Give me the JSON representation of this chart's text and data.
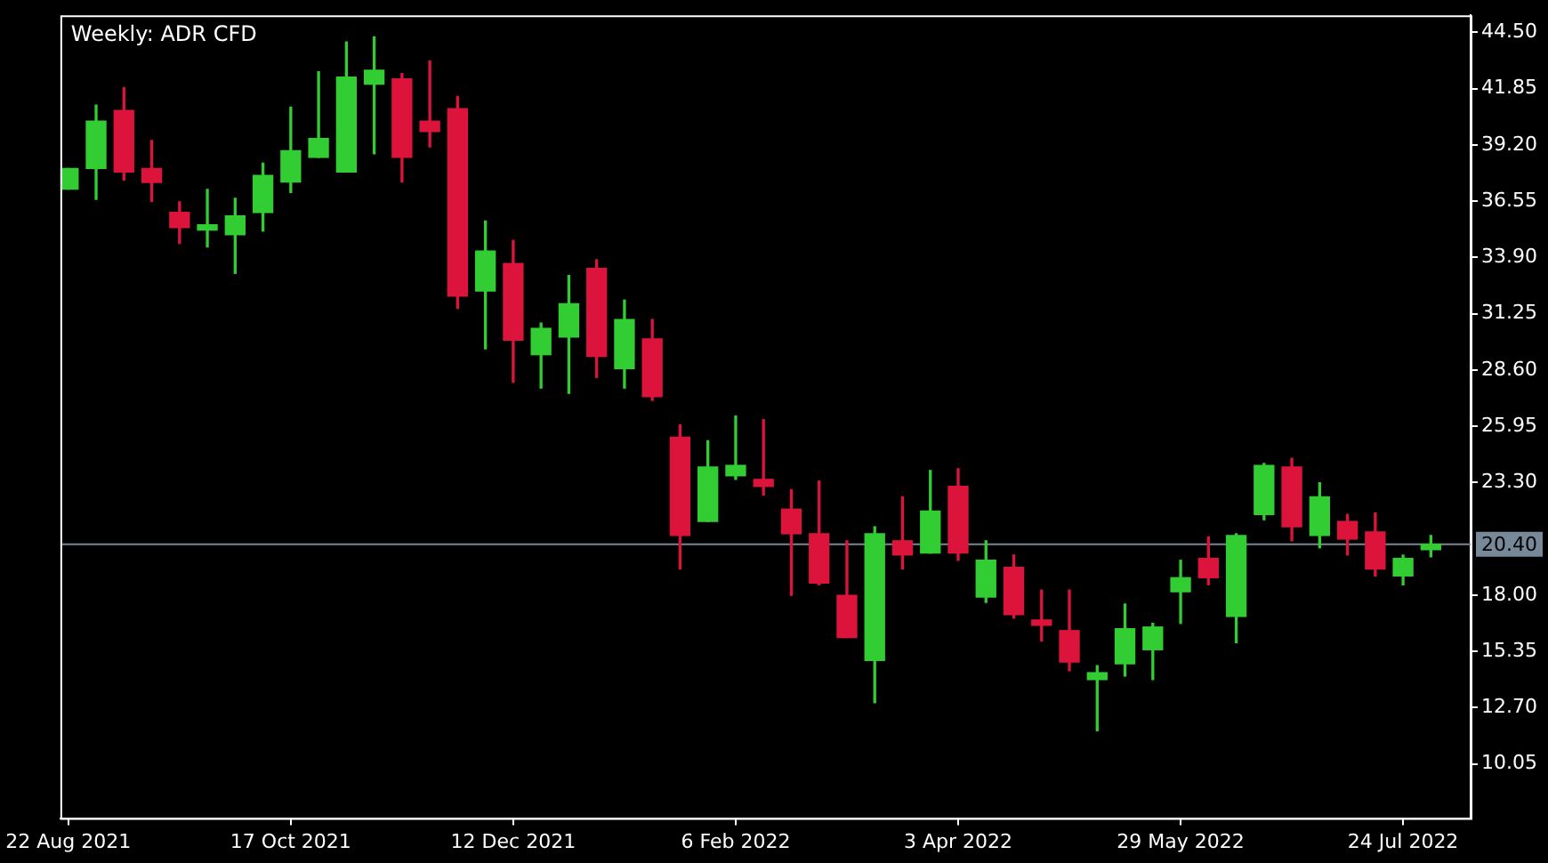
{
  "chart_data": {
    "type": "candlestick",
    "title": "Weekly: ADR CFD",
    "x": [
      "2021-08-22",
      "2021-08-29",
      "2021-09-05",
      "2021-09-12",
      "2021-09-19",
      "2021-09-26",
      "2021-10-03",
      "2021-10-10",
      "2021-10-17",
      "2021-10-24",
      "2021-10-31",
      "2021-11-07",
      "2021-11-14",
      "2021-11-21",
      "2021-11-28",
      "2021-12-05",
      "2021-12-12",
      "2021-12-19",
      "2021-12-26",
      "2022-01-02",
      "2022-01-09",
      "2022-01-16",
      "2022-01-23",
      "2022-01-30",
      "2022-02-06",
      "2022-02-13",
      "2022-02-20",
      "2022-02-27",
      "2022-03-06",
      "2022-03-13",
      "2022-03-20",
      "2022-03-27",
      "2022-04-03",
      "2022-04-10",
      "2022-04-17",
      "2022-04-24",
      "2022-05-01",
      "2022-05-08",
      "2022-05-15",
      "2022-05-22",
      "2022-05-29",
      "2022-06-05",
      "2022-06-12",
      "2022-06-19",
      "2022-06-26",
      "2022-07-03",
      "2022-07-10",
      "2022-07-17",
      "2022-07-24",
      "2022-07-31"
    ],
    "ohlc": [
      [
        37.12,
        38.09,
        37.12,
        38.09
      ],
      [
        38.09,
        41.07,
        36.63,
        40.32
      ],
      [
        40.82,
        41.9,
        37.54,
        37.92
      ],
      [
        38.09,
        39.41,
        36.54,
        37.43
      ],
      [
        36.02,
        36.52,
        34.56,
        35.3
      ],
      [
        35.19,
        37.1,
        34.39,
        35.44
      ],
      [
        34.97,
        36.68,
        33.15,
        35.86
      ],
      [
        36.02,
        38.34,
        35.14,
        37.76
      ],
      [
        37.45,
        40.98,
        36.96,
        38.92
      ],
      [
        38.61,
        42.64,
        38.61,
        39.5
      ],
      [
        37.92,
        44.05,
        37.92,
        42.39
      ],
      [
        42.06,
        44.29,
        38.78,
        42.72
      ],
      [
        42.31,
        42.56,
        37.45,
        38.61
      ],
      [
        40.32,
        43.14,
        39.11,
        39.83
      ],
      [
        40.9,
        41.48,
        31.5,
        32.08
      ],
      [
        32.32,
        35.61,
        29.6,
        34.2
      ],
      [
        33.62,
        34.7,
        28.02,
        30.01
      ],
      [
        29.32,
        30.81,
        27.75,
        30.56
      ],
      [
        30.15,
        33.05,
        27.5,
        31.72
      ],
      [
        33.38,
        33.79,
        28.25,
        29.24
      ],
      [
        28.66,
        31.89,
        27.75,
        30.98
      ],
      [
        30.07,
        30.98,
        27.17,
        27.34
      ],
      [
        25.44,
        26.01,
        19.23,
        20.81
      ],
      [
        21.47,
        25.27,
        21.47,
        24.03
      ],
      [
        23.62,
        26.43,
        23.45,
        24.11
      ],
      [
        23.45,
        26.26,
        22.71,
        23.12
      ],
      [
        22.05,
        22.96,
        17.99,
        20.89
      ],
      [
        20.89,
        23.37,
        18.49,
        18.57
      ],
      [
        17.99,
        20.56,
        16.0,
        16.0
      ],
      [
        14.93,
        21.22,
        12.94,
        20.89
      ],
      [
        20.56,
        22.63,
        19.23,
        19.89
      ],
      [
        19.98,
        23.87,
        19.98,
        21.96
      ],
      [
        23.12,
        23.95,
        19.64,
        19.98
      ],
      [
        17.91,
        20.56,
        17.66,
        19.64
      ],
      [
        19.31,
        19.89,
        16.92,
        17.08
      ],
      [
        16.83,
        18.24,
        15.84,
        16.58
      ],
      [
        16.33,
        18.24,
        14.44,
        14.85
      ],
      [
        14.02,
        14.68,
        11.62,
        14.35
      ],
      [
        14.77,
        17.58,
        14.19,
        16.42
      ],
      [
        15.43,
        16.67,
        14.02,
        16.5
      ],
      [
        18.16,
        19.64,
        16.67,
        18.82
      ],
      [
        19.73,
        20.74,
        18.49,
        18.82
      ],
      [
        17.0,
        20.89,
        15.76,
        20.81
      ],
      [
        21.8,
        24.2,
        21.55,
        24.11
      ],
      [
        24.03,
        24.44,
        20.56,
        21.22
      ],
      [
        20.81,
        23.29,
        20.23,
        22.63
      ],
      [
        21.47,
        21.8,
        19.89,
        20.64
      ],
      [
        20.97,
        21.88,
        18.9,
        19.23
      ],
      [
        18.9,
        19.89,
        18.49,
        19.73
      ],
      [
        20.14,
        20.81,
        19.81,
        20.4
      ]
    ],
    "colors": [
      "#32cd32",
      "#32cd32",
      "#dc143c",
      "#dc143c",
      "#dc143c",
      "#32cd32",
      "#32cd32",
      "#32cd32",
      "#32cd32",
      "#32cd32",
      "#32cd32",
      "#32cd32",
      "#dc143c",
      "#dc143c",
      "#dc143c",
      "#32cd32",
      "#dc143c",
      "#32cd32",
      "#32cd32",
      "#dc143c",
      "#32cd32",
      "#dc143c",
      "#dc143c",
      "#32cd32",
      "#32cd32",
      "#dc143c",
      "#dc143c",
      "#dc143c",
      "#dc143c",
      "#32cd32",
      "#dc143c",
      "#32cd32",
      "#dc143c",
      "#32cd32",
      "#dc143c",
      "#dc143c",
      "#dc143c",
      "#32cd32",
      "#32cd32",
      "#32cd32",
      "#32cd32",
      "#dc143c",
      "#32cd32",
      "#32cd32",
      "#dc143c",
      "#32cd32",
      "#dc143c",
      "#dc143c",
      "#32cd32",
      "#32cd32"
    ],
    "xlim": [
      "2021-08-20",
      "2022-08-10"
    ],
    "xticks": [
      {
        "value": "2021-08-22",
        "label": "22 Aug 2021"
      },
      {
        "value": "2021-10-17",
        "label": "17 Oct 2021"
      },
      {
        "value": "2021-12-12",
        "label": "12 Dec 2021"
      },
      {
        "value": "2022-02-06",
        "label": "6 Feb 2022"
      },
      {
        "value": "2022-04-03",
        "label": "3 Apr 2022"
      },
      {
        "value": "2022-05-29",
        "label": "29 May 2022"
      },
      {
        "value": "2022-07-24",
        "label": "24 Jul 2022"
      }
    ],
    "ylim": [
      7.5,
      45.3
    ],
    "yticks": [
      {
        "value": 44.5,
        "label": "44.50"
      },
      {
        "value": 41.85,
        "label": "41.85"
      },
      {
        "value": 39.2,
        "label": "39.20"
      },
      {
        "value": 36.55,
        "label": "36.55"
      },
      {
        "value": 33.9,
        "label": "33.90"
      },
      {
        "value": 31.25,
        "label": "31.25"
      },
      {
        "value": 28.6,
        "label": "28.60"
      },
      {
        "value": 25.95,
        "label": "25.95"
      },
      {
        "value": 23.3,
        "label": "23.30"
      },
      {
        "value": 18,
        "label": "18.00"
      },
      {
        "value": 15.35,
        "label": "15.35"
      },
      {
        "value": 12.7,
        "label": "12.70"
      },
      {
        "value": 10.05,
        "label": "10.05"
      }
    ],
    "ref_lines": [
      {
        "axis": "y",
        "value": 20.4,
        "label": "20.40",
        "color": "#778899"
      }
    ],
    "grid": false,
    "legend": false
  }
}
